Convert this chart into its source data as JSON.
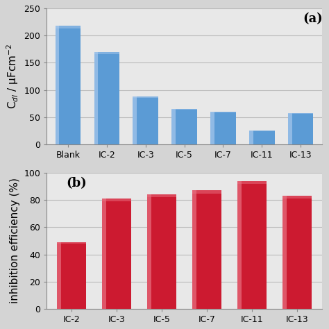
{
  "chart_a": {
    "categories": [
      "Blank",
      "IC-2",
      "IC-3",
      "IC-5",
      "IC-7",
      "IC-11",
      "IC-13"
    ],
    "values": [
      218,
      170,
      88,
      65,
      60,
      25,
      57
    ],
    "bar_color": "#5b9bd5",
    "bar_color_light": "#a8c8ec",
    "ylabel": "C$_{dl}$ / μFcm$^{-2}$",
    "ylim": [
      0,
      250
    ],
    "yticks": [
      0,
      50,
      100,
      150,
      200,
      250
    ],
    "label": "(a)"
  },
  "chart_b": {
    "categories": [
      "IC-2",
      "IC-3",
      "IC-5",
      "IC-7",
      "IC-11",
      "IC-13"
    ],
    "values": [
      49,
      81,
      84,
      87,
      94,
      83
    ],
    "bar_color": "#cc1a30",
    "bar_color_light": "#e87080",
    "ylabel": "inhibition efficiency (%)",
    "ylim": [
      0,
      100
    ],
    "yticks": [
      0,
      20,
      40,
      60,
      80,
      100
    ],
    "label": "(b)"
  },
  "background_color": "#e8e8e8",
  "fig_background": "#d4d4d4",
  "label_fontsize": 11,
  "tick_fontsize": 9,
  "annot_fontsize": 13
}
